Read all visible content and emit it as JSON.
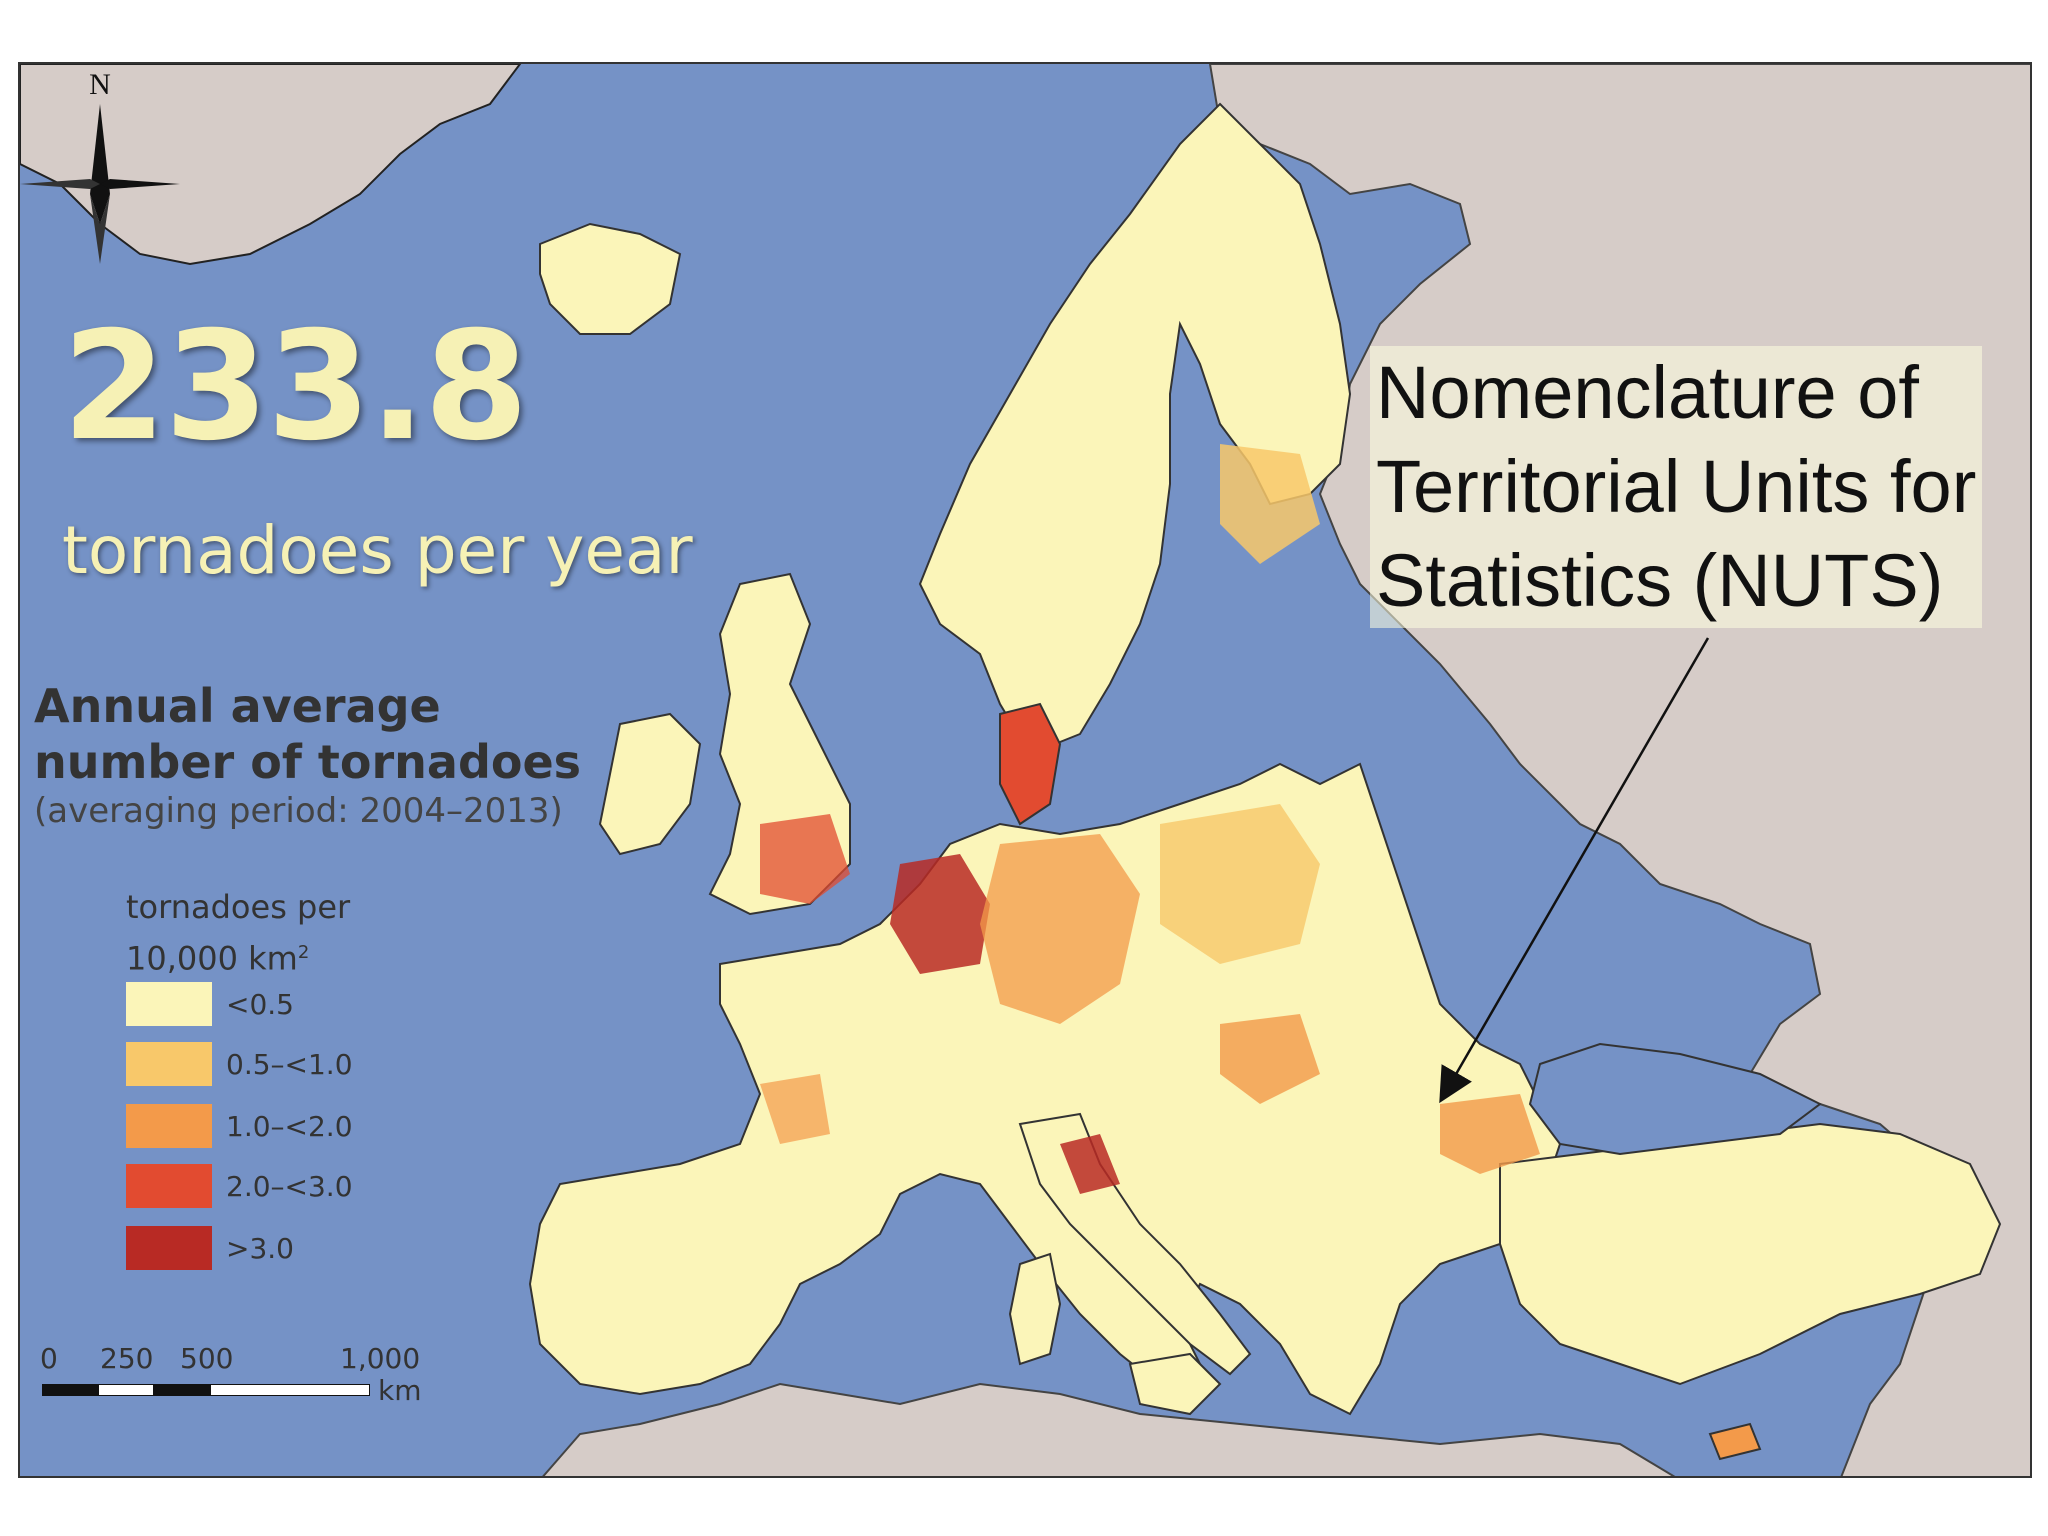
{
  "headline": {
    "number": "233.8",
    "subtitle": "tornadoes per year"
  },
  "legend": {
    "title_line1": "Annual average",
    "title_line2": "number of tornadoes",
    "period": "(averaging period: 2004–2013)",
    "unit_line1": "tornadoes per",
    "unit_line2": "10,000 km",
    "unit_sup": "2",
    "classes": [
      {
        "label": "<0.5",
        "color": "#fbf5b9"
      },
      {
        "label": "0.5–<1.0",
        "color": "#f8c86a"
      },
      {
        "label": "1.0–<2.0",
        "color": "#f39a4a"
      },
      {
        "label": "2.0–<3.0",
        "color": "#e24b30"
      },
      {
        "label": ">3.0",
        "color": "#b82a24"
      }
    ]
  },
  "scale_bar": {
    "ticks": [
      "0",
      "250",
      "500",
      "1,000"
    ],
    "unit": "km"
  },
  "compass": {
    "label": "N"
  },
  "annotation": {
    "line1": "Nomenclature of",
    "line2": "Territorial Units for",
    "line3": "Statistics (NUTS)"
  },
  "colors": {
    "sea": "#7592c6",
    "non_eu_land": "#d6ccc8",
    "eu_land": "#fbf5b9"
  }
}
